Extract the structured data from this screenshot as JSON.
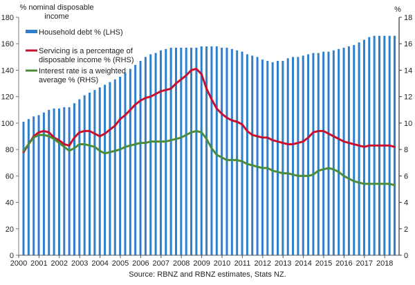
{
  "chart_data": {
    "type": "bar+line",
    "title": "",
    "ylabel_left": "% nominal disposable income",
    "ylabel_right": "%",
    "ylim_left": [
      0,
      180
    ],
    "ylim_right": [
      0,
      18
    ],
    "yticks_left": [
      0,
      20,
      40,
      60,
      80,
      100,
      120,
      140,
      160,
      180
    ],
    "yticks_right": [
      0,
      2,
      4,
      6,
      8,
      10,
      12,
      14,
      16,
      18
    ],
    "xticks": [
      "2000",
      "2001",
      "2002",
      "2003",
      "2004",
      "2005",
      "2006",
      "2007",
      "2008",
      "2009",
      "2010",
      "2011",
      "2012",
      "2013",
      "2014",
      "2015",
      "2016",
      "2017",
      "2018"
    ],
    "x_start": 2000,
    "frequency": "quarterly",
    "source": "Source: RBNZ and RBNZ estimates, Stats NZ.",
    "legend_position": "top-left",
    "series": [
      {
        "name": "Household debt % (LHS)",
        "type": "bar",
        "axis": "left",
        "color": "#2e7fcc",
        "values": [
          101,
          103,
          105,
          106,
          108,
          110,
          111,
          111,
          112,
          112,
          115,
          118,
          121,
          123,
          125,
          127,
          129,
          131,
          133,
          135,
          138,
          141,
          144,
          147,
          150,
          152,
          153,
          155,
          156,
          157,
          157,
          157,
          157,
          157,
          157,
          158,
          158,
          158,
          158,
          157,
          157,
          156,
          155,
          154,
          152,
          151,
          150,
          148,
          147,
          146,
          147,
          147,
          149,
          150,
          150,
          151,
          152,
          153,
          153,
          154,
          154,
          155,
          156,
          157,
          158,
          159,
          161,
          163,
          165,
          166,
          166,
          166,
          166,
          166
        ]
      },
      {
        "name": "Servicing is a percentage of disposable income % (RHS)",
        "legend_lines": [
          "Servicing is a percentage of",
          "disposable income % (RHS)"
        ],
        "type": "line",
        "axis": "right",
        "color": "#c8102e",
        "values": [
          7.8,
          8.4,
          9.0,
          9.3,
          9.4,
          9.3,
          8.9,
          8.7,
          8.4,
          8.3,
          8.9,
          9.3,
          9.4,
          9.4,
          9.2,
          9.0,
          9.2,
          9.5,
          9.8,
          10.3,
          10.6,
          11.0,
          11.4,
          11.7,
          11.9,
          12.0,
          12.2,
          12.4,
          12.5,
          12.6,
          13.0,
          13.3,
          13.6,
          14.0,
          14.1,
          13.7,
          12.6,
          11.8,
          11.1,
          10.7,
          10.4,
          10.2,
          10.1,
          9.9,
          9.4,
          9.1,
          9.0,
          8.9,
          8.9,
          8.7,
          8.6,
          8.5,
          8.4,
          8.4,
          8.5,
          8.6,
          8.9,
          9.3,
          9.4,
          9.4,
          9.2,
          9.0,
          8.8,
          8.6,
          8.5,
          8.4,
          8.3,
          8.2,
          8.3,
          8.3,
          8.3,
          8.3,
          8.3,
          8.2
        ]
      },
      {
        "name": "Interest rate is a weighted average % (RHS)",
        "legend_lines": [
          "Interest rate is a weighted",
          "average % (RHS)"
        ],
        "type": "line",
        "axis": "right",
        "color": "#4a8c3a",
        "values": [
          7.9,
          8.4,
          8.9,
          9.1,
          9.1,
          9.0,
          8.8,
          8.5,
          8.2,
          7.9,
          8.1,
          8.4,
          8.4,
          8.3,
          8.2,
          7.9,
          7.7,
          7.8,
          7.9,
          8.0,
          8.2,
          8.3,
          8.4,
          8.5,
          8.5,
          8.6,
          8.6,
          8.6,
          8.6,
          8.7,
          8.8,
          8.9,
          9.1,
          9.3,
          9.4,
          9.3,
          8.8,
          8.1,
          7.6,
          7.4,
          7.2,
          7.2,
          7.2,
          7.1,
          6.9,
          6.8,
          6.7,
          6.6,
          6.6,
          6.4,
          6.3,
          6.2,
          6.2,
          6.1,
          6.0,
          6.0,
          6.0,
          6.1,
          6.4,
          6.5,
          6.6,
          6.5,
          6.3,
          6.0,
          5.8,
          5.6,
          5.5,
          5.4,
          5.4,
          5.4,
          5.4,
          5.4,
          5.4,
          5.3
        ]
      }
    ]
  }
}
